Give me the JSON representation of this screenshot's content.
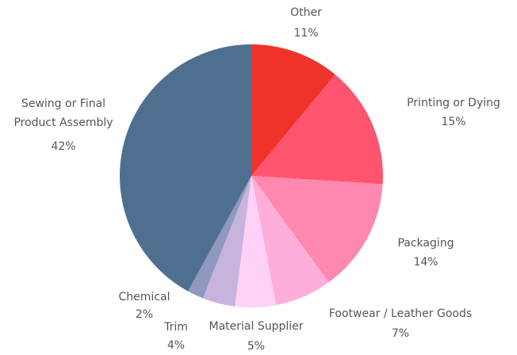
{
  "chart_data": {
    "type": "pie",
    "categories": [
      "Other",
      "Printing or Dying",
      "Packaging",
      "Footwear / Leather Goods",
      "Material Supplier",
      "Trim",
      "Chemical",
      "Sewing or Final Product Assembly"
    ],
    "values": [
      11,
      15,
      14,
      7,
      5,
      4,
      2,
      42
    ],
    "value_labels": [
      "11%",
      "15%",
      "14%",
      "7%",
      "5%",
      "4%",
      "2%",
      "42%"
    ],
    "colors": [
      "#f0332a",
      "#ff5470",
      "#ff88b0",
      "#ffaedb",
      "#ffd0f8",
      "#c8b3dc",
      "#8f98bf",
      "#4f6f90"
    ]
  }
}
